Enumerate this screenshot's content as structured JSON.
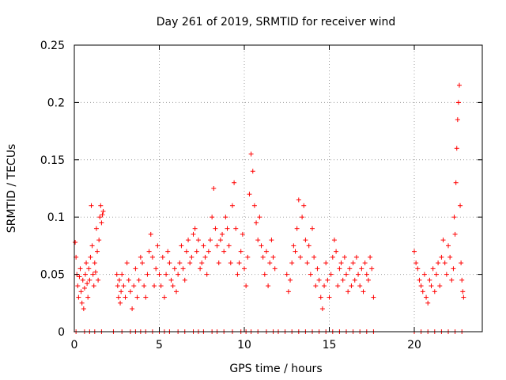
{
  "chart_data": {
    "type": "scatter",
    "title": "Day 261 of 2019, SRMTID for receiver wind",
    "xlabel": "GPS time / hours",
    "ylabel": "SRMTID / TECUs",
    "xlim": [
      0,
      24
    ],
    "ylim": [
      0,
      0.25
    ],
    "x_ticks": [
      0,
      5,
      10,
      15,
      20
    ],
    "y_ticks": [
      0,
      0.05,
      0.1,
      0.15,
      0.2,
      0.25
    ],
    "x_tick_labels": [
      "0",
      "5",
      "10",
      "15",
      "20"
    ],
    "y_tick_labels": [
      "0",
      "0.05",
      "0.1",
      "0.15",
      "0.2",
      "0.25"
    ],
    "grid": true,
    "marker": "+",
    "series_color": "#ff0000",
    "series": [
      {
        "name": "SRMTID",
        "points": [
          [
            0.05,
            0.078
          ],
          [
            0.1,
            0.065
          ],
          [
            0.15,
            0.05
          ],
          [
            0.2,
            0.04
          ],
          [
            0.25,
            0.03
          ],
          [
            0.3,
            0.048
          ],
          [
            0.35,
            0.055
          ],
          [
            0.4,
            0.035
          ],
          [
            0.45,
            0.025
          ],
          [
            0.5,
            0.045
          ],
          [
            0.55,
            0.02
          ],
          [
            0.6,
            0.038
          ],
          [
            0.65,
            0.05
          ],
          [
            0.7,
            0.06
          ],
          [
            0.75,
            0.042
          ],
          [
            0.8,
            0.03
          ],
          [
            0.85,
            0.055
          ],
          [
            0.9,
            0.045
          ],
          [
            0.95,
            0.065
          ],
          [
            1.0,
            0.11
          ],
          [
            1.05,
            0.075
          ],
          [
            1.1,
            0.05
          ],
          [
            1.15,
            0.04
          ],
          [
            1.2,
            0.06
          ],
          [
            1.25,
            0.052
          ],
          [
            1.3,
            0.09
          ],
          [
            1.35,
            0.07
          ],
          [
            1.4,
            0.045
          ],
          [
            1.45,
            0.08
          ],
          [
            1.5,
            0.1
          ],
          [
            1.55,
            0.11
          ],
          [
            1.6,
            0.095
          ],
          [
            1.65,
            0.102
          ],
          [
            1.7,
            0.105
          ],
          [
            2.5,
            0.05
          ],
          [
            2.55,
            0.04
          ],
          [
            2.6,
            0.03
          ],
          [
            2.65,
            0.045
          ],
          [
            2.7,
            0.025
          ],
          [
            2.75,
            0.035
          ],
          [
            2.8,
            0.05
          ],
          [
            2.9,
            0.04
          ],
          [
            3.0,
            0.03
          ],
          [
            3.1,
            0.06
          ],
          [
            3.2,
            0.045
          ],
          [
            3.3,
            0.035
          ],
          [
            3.4,
            0.02
          ],
          [
            3.5,
            0.04
          ],
          [
            3.6,
            0.055
          ],
          [
            3.7,
            0.03
          ],
          [
            3.8,
            0.045
          ],
          [
            3.9,
            0.065
          ],
          [
            4.0,
            0.06
          ],
          [
            4.1,
            0.04
          ],
          [
            4.2,
            0.03
          ],
          [
            4.3,
            0.05
          ],
          [
            4.4,
            0.07
          ],
          [
            4.5,
            0.085
          ],
          [
            4.6,
            0.065
          ],
          [
            4.7,
            0.04
          ],
          [
            4.8,
            0.055
          ],
          [
            4.9,
            0.075
          ],
          [
            5.0,
            0.05
          ],
          [
            5.1,
            0.04
          ],
          [
            5.2,
            0.065
          ],
          [
            5.3,
            0.03
          ],
          [
            5.4,
            0.05
          ],
          [
            5.5,
            0.07
          ],
          [
            5.6,
            0.06
          ],
          [
            5.7,
            0.045
          ],
          [
            5.8,
            0.04
          ],
          [
            5.9,
            0.055
          ],
          [
            6.0,
            0.035
          ],
          [
            6.1,
            0.05
          ],
          [
            6.2,
            0.06
          ],
          [
            6.3,
            0.075
          ],
          [
            6.4,
            0.055
          ],
          [
            6.5,
            0.045
          ],
          [
            6.6,
            0.07
          ],
          [
            6.7,
            0.08
          ],
          [
            6.8,
            0.06
          ],
          [
            6.9,
            0.065
          ],
          [
            7.0,
            0.085
          ],
          [
            7.1,
            0.09
          ],
          [
            7.2,
            0.07
          ],
          [
            7.3,
            0.08
          ],
          [
            7.4,
            0.055
          ],
          [
            7.5,
            0.06
          ],
          [
            7.6,
            0.075
          ],
          [
            7.7,
            0.065
          ],
          [
            7.8,
            0.05
          ],
          [
            7.9,
            0.07
          ],
          [
            8.0,
            0.08
          ],
          [
            8.1,
            0.1
          ],
          [
            8.2,
            0.125
          ],
          [
            8.3,
            0.09
          ],
          [
            8.4,
            0.075
          ],
          [
            8.5,
            0.06
          ],
          [
            8.6,
            0.08
          ],
          [
            8.7,
            0.085
          ],
          [
            8.8,
            0.07
          ],
          [
            8.9,
            0.1
          ],
          [
            9.0,
            0.09
          ],
          [
            9.1,
            0.075
          ],
          [
            9.2,
            0.06
          ],
          [
            9.3,
            0.11
          ],
          [
            9.4,
            0.13
          ],
          [
            9.5,
            0.09
          ],
          [
            9.6,
            0.05
          ],
          [
            9.7,
            0.06
          ],
          [
            9.8,
            0.07
          ],
          [
            9.9,
            0.085
          ],
          [
            10.0,
            0.055
          ],
          [
            10.1,
            0.04
          ],
          [
            10.2,
            0.065
          ],
          [
            10.3,
            0.12
          ],
          [
            10.4,
            0.155
          ],
          [
            10.5,
            0.14
          ],
          [
            10.6,
            0.11
          ],
          [
            10.7,
            0.095
          ],
          [
            10.8,
            0.08
          ],
          [
            10.9,
            0.1
          ],
          [
            11.0,
            0.075
          ],
          [
            11.1,
            0.065
          ],
          [
            11.2,
            0.05
          ],
          [
            11.3,
            0.07
          ],
          [
            11.4,
            0.04
          ],
          [
            11.5,
            0.06
          ],
          [
            11.6,
            0.08
          ],
          [
            11.7,
            0.065
          ],
          [
            11.8,
            0.055
          ],
          [
            12.5,
            0.05
          ],
          [
            12.6,
            0.035
          ],
          [
            12.7,
            0.045
          ],
          [
            12.8,
            0.06
          ],
          [
            12.9,
            0.075
          ],
          [
            13.0,
            0.07
          ],
          [
            13.1,
            0.09
          ],
          [
            13.2,
            0.115
          ],
          [
            13.3,
            0.065
          ],
          [
            13.4,
            0.1
          ],
          [
            13.5,
            0.11
          ],
          [
            13.6,
            0.08
          ],
          [
            13.7,
            0.06
          ],
          [
            13.8,
            0.075
          ],
          [
            13.9,
            0.05
          ],
          [
            14.0,
            0.09
          ],
          [
            14.1,
            0.065
          ],
          [
            14.2,
            0.04
          ],
          [
            14.3,
            0.055
          ],
          [
            14.4,
            0.045
          ],
          [
            14.5,
            0.03
          ],
          [
            14.6,
            0.02
          ],
          [
            14.7,
            0.04
          ],
          [
            14.8,
            0.06
          ],
          [
            14.9,
            0.045
          ],
          [
            15.0,
            0.03
          ],
          [
            15.1,
            0.05
          ],
          [
            15.2,
            0.065
          ],
          [
            15.3,
            0.08
          ],
          [
            15.4,
            0.07
          ],
          [
            15.5,
            0.04
          ],
          [
            15.6,
            0.055
          ],
          [
            15.7,
            0.06
          ],
          [
            15.8,
            0.045
          ],
          [
            15.9,
            0.065
          ],
          [
            16.0,
            0.05
          ],
          [
            16.1,
            0.035
          ],
          [
            16.2,
            0.055
          ],
          [
            16.3,
            0.04
          ],
          [
            16.4,
            0.06
          ],
          [
            16.5,
            0.045
          ],
          [
            16.6,
            0.065
          ],
          [
            16.7,
            0.05
          ],
          [
            16.8,
            0.04
          ],
          [
            16.9,
            0.055
          ],
          [
            17.0,
            0.035
          ],
          [
            17.1,
            0.06
          ],
          [
            17.2,
            0.05
          ],
          [
            17.3,
            0.045
          ],
          [
            17.4,
            0.065
          ],
          [
            17.5,
            0.055
          ],
          [
            17.6,
            0.03
          ],
          [
            20.0,
            0.07
          ],
          [
            20.1,
            0.06
          ],
          [
            20.2,
            0.055
          ],
          [
            20.3,
            0.045
          ],
          [
            20.4,
            0.04
          ],
          [
            20.5,
            0.035
          ],
          [
            20.6,
            0.05
          ],
          [
            20.7,
            0.03
          ],
          [
            20.8,
            0.025
          ],
          [
            20.9,
            0.045
          ],
          [
            21.0,
            0.04
          ],
          [
            21.1,
            0.055
          ],
          [
            21.2,
            0.035
          ],
          [
            21.3,
            0.05
          ],
          [
            21.4,
            0.06
          ],
          [
            21.5,
            0.04
          ],
          [
            21.6,
            0.065
          ],
          [
            21.7,
            0.08
          ],
          [
            21.8,
            0.06
          ],
          [
            21.9,
            0.05
          ],
          [
            22.0,
            0.075
          ],
          [
            22.1,
            0.065
          ],
          [
            22.2,
            0.045
          ],
          [
            22.3,
            0.055
          ],
          [
            22.35,
            0.1
          ],
          [
            22.4,
            0.085
          ],
          [
            22.45,
            0.13
          ],
          [
            22.5,
            0.16
          ],
          [
            22.55,
            0.185
          ],
          [
            22.6,
            0.2
          ],
          [
            22.65,
            0.215
          ],
          [
            22.7,
            0.11
          ],
          [
            22.75,
            0.06
          ],
          [
            22.8,
            0.045
          ],
          [
            22.85,
            0.035
          ],
          [
            22.9,
            0.03
          ]
        ]
      }
    ],
    "zero_markers_x": [
      0.1,
      0.6,
      0.9,
      1.2,
      1.6,
      2.3,
      2.8,
      3.3,
      3.6,
      3.9,
      4.2,
      4.6,
      5.0,
      5.3,
      5.6,
      6.1,
      6.5,
      7.0,
      7.3,
      7.6,
      8.1,
      8.4,
      8.8,
      9.3,
      9.8,
      10.1,
      10.4,
      10.8,
      11.3,
      11.7,
      12.0,
      12.4,
      12.8,
      13.2,
      13.6,
      14.0,
      14.4,
      14.8,
      15.2,
      15.6,
      16.0,
      16.4,
      16.8,
      17.2,
      17.6,
      20.0,
      20.4,
      20.8,
      21.2,
      21.6,
      22.0,
      22.4,
      22.8
    ]
  }
}
